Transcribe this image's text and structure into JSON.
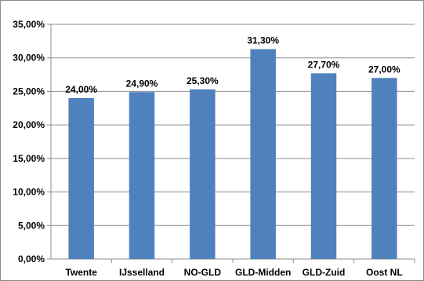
{
  "chart_data": {
    "type": "bar",
    "title": "",
    "xlabel": "",
    "ylabel": "",
    "categories": [
      "Twente",
      "IJsselland",
      "NO-GLD",
      "GLD-Midden",
      "GLD-Zuid",
      "Oost NL"
    ],
    "values": [
      24.0,
      24.9,
      25.3,
      31.3,
      27.7,
      27.0
    ],
    "value_labels": [
      "24,00%",
      "24,90%",
      "25,30%",
      "31,30%",
      "27,70%",
      "27,00%"
    ],
    "ylim": [
      0,
      35
    ],
    "y_ticks": [
      0,
      5,
      10,
      15,
      20,
      25,
      30,
      35
    ],
    "y_tick_labels": [
      "0,00%",
      "5,00%",
      "10,00%",
      "15,00%",
      "20,00%",
      "25,00%",
      "30,00%",
      "35,00%"
    ],
    "grid": "horizontal",
    "legend": "none",
    "bar_color": "#4F81BD"
  }
}
